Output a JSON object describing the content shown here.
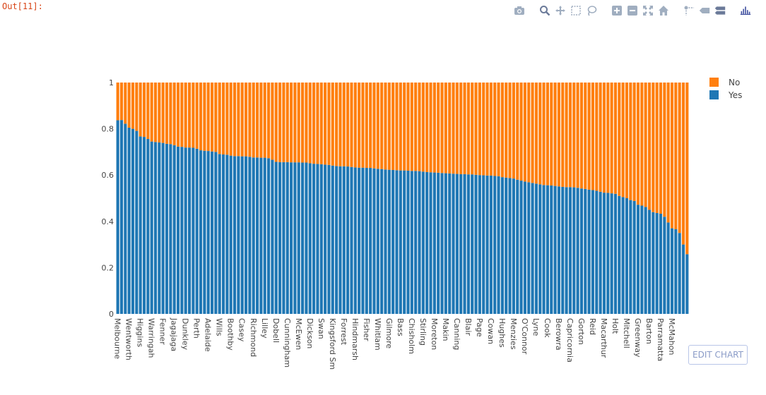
{
  "prompt": "Out[11]:",
  "edit_chart_label": "EDIT CHART",
  "modebar": {
    "buttons": [
      "camera-icon",
      "zoom-icon",
      "pan-icon",
      "box-select-icon",
      "lasso-icon",
      "zoom-in-icon",
      "zoom-out-icon",
      "autoscale-icon",
      "reset-axes-icon",
      "spike-lines-icon",
      "hover-closest-icon",
      "hover-compare-icon",
      "plotly-logo-icon"
    ]
  },
  "colors": {
    "yes": "#1f77b4",
    "no": "#ff7f0e",
    "axis_text": "#444444"
  },
  "chart_data": {
    "type": "bar",
    "barmode": "stack",
    "ylim": [
      0,
      1
    ],
    "yticks": [
      "0",
      "0.2",
      "0.4",
      "0.6",
      "0.8",
      "1"
    ],
    "legend": [
      "No",
      "Yes"
    ],
    "legend_position": "top-right",
    "tick_labels": [
      "Melbourne",
      "Wentworth",
      "Higgins",
      "Warringah",
      "Fenner",
      "Jagajaga",
      "Dunkley",
      "Perth",
      "Adelaide",
      "Wills",
      "Boothby",
      "Casey",
      "Richmond",
      "Lilley",
      "Dobell",
      "Cunningham",
      "McEwen",
      "Dickson",
      "Swan",
      "Kingsford Sm",
      "Forrest",
      "Hindmarsh",
      "Fisher",
      "Whitlam",
      "Gilmore",
      "Bass",
      "Chisholm",
      "Stirling",
      "Moreton",
      "Makin",
      "Canning",
      "Blair",
      "Page",
      "Cowan",
      "Hughes",
      "Menzies",
      "O'Connor",
      "Lyne",
      "Cook",
      "Berowra",
      "Capricornia",
      "Gorton",
      "Reid",
      "Macarthur",
      "Holt",
      "Mitchell",
      "Greenway",
      "Barton",
      "Parramatta",
      "McMahon"
    ],
    "series": [
      {
        "name": "Yes",
        "values": [
          0.837,
          0.838,
          0.822,
          0.805,
          0.8,
          0.791,
          0.767,
          0.765,
          0.756,
          0.745,
          0.743,
          0.741,
          0.739,
          0.735,
          0.734,
          0.729,
          0.723,
          0.722,
          0.719,
          0.719,
          0.718,
          0.714,
          0.707,
          0.705,
          0.704,
          0.702,
          0.7,
          0.691,
          0.689,
          0.688,
          0.684,
          0.682,
          0.682,
          0.681,
          0.681,
          0.679,
          0.676,
          0.676,
          0.675,
          0.675,
          0.673,
          0.666,
          0.657,
          0.656,
          0.656,
          0.656,
          0.655,
          0.655,
          0.655,
          0.654,
          0.654,
          0.651,
          0.649,
          0.648,
          0.647,
          0.645,
          0.644,
          0.641,
          0.639,
          0.638,
          0.638,
          0.637,
          0.635,
          0.633,
          0.632,
          0.632,
          0.631,
          0.631,
          0.629,
          0.627,
          0.626,
          0.624,
          0.623,
          0.622,
          0.621,
          0.62,
          0.62,
          0.619,
          0.618,
          0.618,
          0.617,
          0.615,
          0.613,
          0.612,
          0.611,
          0.61,
          0.609,
          0.608,
          0.607,
          0.606,
          0.605,
          0.604,
          0.604,
          0.603,
          0.603,
          0.601,
          0.6,
          0.599,
          0.598,
          0.598,
          0.596,
          0.595,
          0.591,
          0.589,
          0.587,
          0.585,
          0.58,
          0.576,
          0.572,
          0.569,
          0.566,
          0.563,
          0.56,
          0.557,
          0.556,
          0.555,
          0.553,
          0.551,
          0.549,
          0.548,
          0.548,
          0.547,
          0.545,
          0.542,
          0.54,
          0.537,
          0.535,
          0.532,
          0.528,
          0.524,
          0.523,
          0.521,
          0.519,
          0.51,
          0.505,
          0.5,
          0.492,
          0.488,
          0.472,
          0.468,
          0.462,
          0.45,
          0.44,
          0.436,
          0.433,
          0.42,
          0.395,
          0.37,
          0.366,
          0.35,
          0.3,
          0.258
        ]
      },
      {
        "name": "No",
        "values": [
          0.163,
          0.162,
          0.178,
          0.195,
          0.2,
          0.209,
          0.233,
          0.235,
          0.244,
          0.255,
          0.257,
          0.259,
          0.261,
          0.265,
          0.266,
          0.271,
          0.277,
          0.278,
          0.281,
          0.281,
          0.282,
          0.286,
          0.293,
          0.295,
          0.296,
          0.298,
          0.3,
          0.309,
          0.311,
          0.312,
          0.316,
          0.318,
          0.318,
          0.319,
          0.319,
          0.321,
          0.324,
          0.324,
          0.325,
          0.325,
          0.327,
          0.334,
          0.343,
          0.344,
          0.344,
          0.344,
          0.345,
          0.345,
          0.345,
          0.346,
          0.346,
          0.349,
          0.351,
          0.352,
          0.353,
          0.355,
          0.356,
          0.359,
          0.361,
          0.362,
          0.362,
          0.363,
          0.365,
          0.367,
          0.368,
          0.368,
          0.369,
          0.369,
          0.371,
          0.373,
          0.374,
          0.376,
          0.377,
          0.378,
          0.379,
          0.38,
          0.38,
          0.381,
          0.382,
          0.382,
          0.383,
          0.385,
          0.387,
          0.388,
          0.389,
          0.39,
          0.391,
          0.392,
          0.393,
          0.394,
          0.395,
          0.396,
          0.396,
          0.397,
          0.397,
          0.399,
          0.4,
          0.401,
          0.402,
          0.402,
          0.404,
          0.405,
          0.409,
          0.411,
          0.413,
          0.415,
          0.42,
          0.424,
          0.428,
          0.431,
          0.434,
          0.437,
          0.44,
          0.443,
          0.444,
          0.445,
          0.447,
          0.449,
          0.451,
          0.452,
          0.452,
          0.453,
          0.455,
          0.458,
          0.46,
          0.463,
          0.465,
          0.468,
          0.472,
          0.476,
          0.477,
          0.479,
          0.481,
          0.49,
          0.495,
          0.5,
          0.508,
          0.512,
          0.528,
          0.532,
          0.538,
          0.55,
          0.56,
          0.564,
          0.567,
          0.58,
          0.605,
          0.63,
          0.634,
          0.65,
          0.7,
          0.742
        ]
      }
    ]
  }
}
